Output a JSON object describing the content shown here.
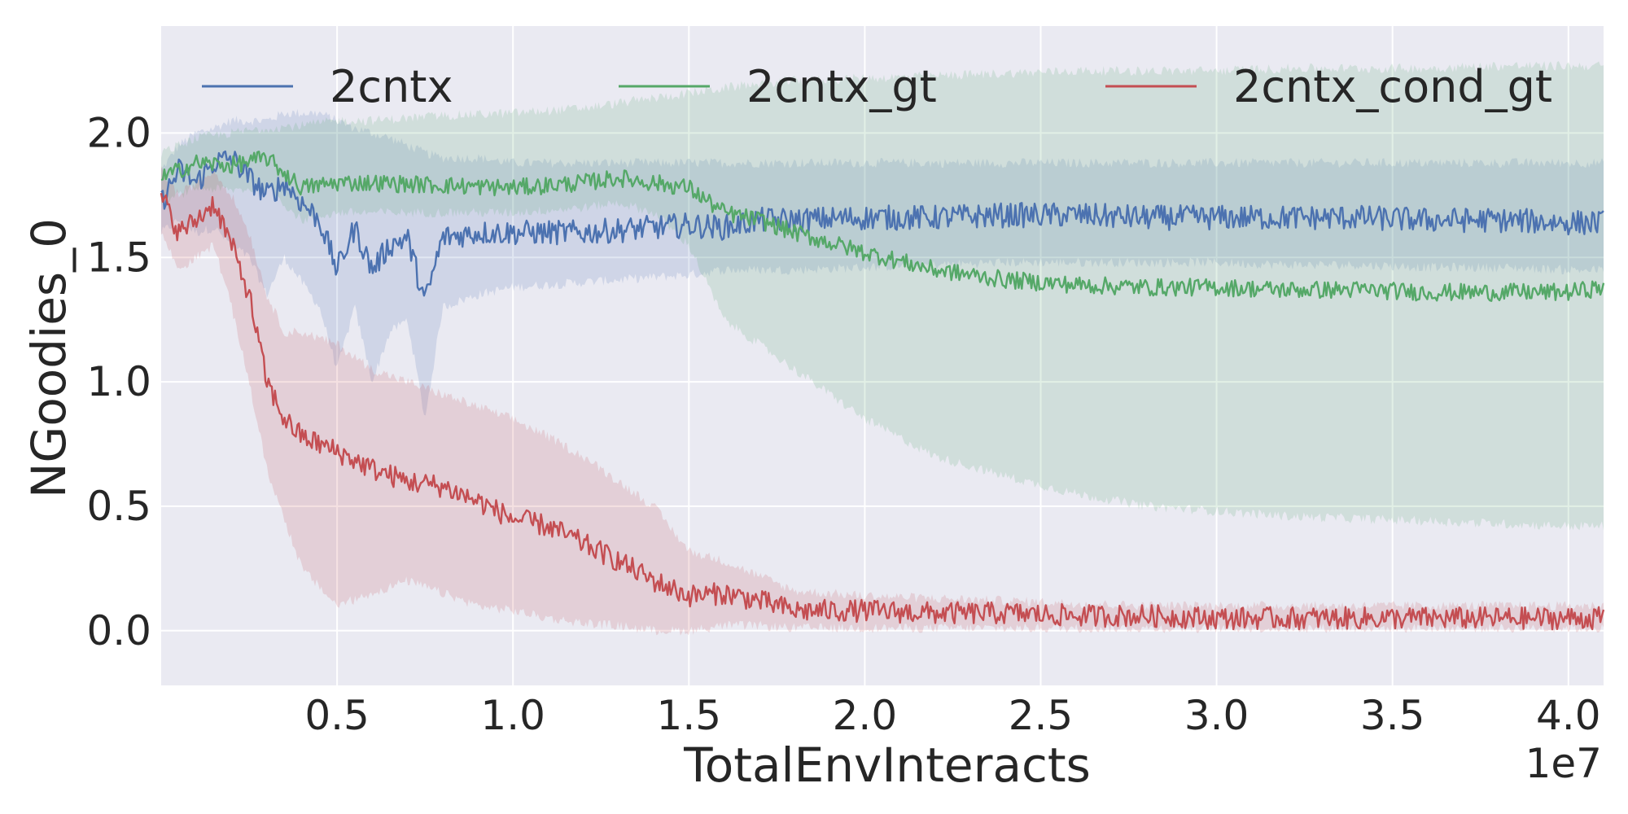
{
  "chart_data": {
    "type": "line",
    "title": "",
    "xlabel": "TotalEnvInteracts",
    "ylabel": "NGoodies_0",
    "x_offset_label": "1e7",
    "xlim": [
      0,
      41000000
    ],
    "ylim": [
      -0.22,
      2.43
    ],
    "xticks": [
      5000000,
      10000000,
      15000000,
      20000000,
      25000000,
      30000000,
      35000000,
      40000000
    ],
    "xtick_labels": [
      "0.5",
      "1.0",
      "1.5",
      "2.0",
      "2.5",
      "3.0",
      "3.5",
      "4.0"
    ],
    "yticks": [
      0.0,
      0.5,
      1.0,
      1.5,
      2.0
    ],
    "ytick_labels": [
      "0.0",
      "0.5",
      "1.0",
      "1.5",
      "2.0"
    ],
    "grid": true,
    "legend_position": "top",
    "series": [
      {
        "name": "2cntx",
        "color": "#4c72b0",
        "x": [
          0,
          500000,
          1000000,
          1500000,
          2000000,
          2500000,
          3000000,
          3500000,
          4000000,
          4500000,
          5000000,
          5500000,
          6000000,
          6500000,
          7000000,
          7500000,
          8000000,
          9000000,
          10000000,
          12000000,
          14000000,
          15000000,
          16000000,
          17000000,
          18000000,
          20000000,
          22000000,
          24000000,
          26000000,
          28000000,
          30000000,
          32000000,
          34000000,
          36000000,
          38000000,
          40000000,
          41000000
        ],
        "y": [
          1.72,
          1.85,
          1.8,
          1.88,
          1.9,
          1.82,
          1.75,
          1.8,
          1.72,
          1.65,
          1.45,
          1.62,
          1.45,
          1.55,
          1.58,
          1.32,
          1.58,
          1.6,
          1.6,
          1.6,
          1.62,
          1.63,
          1.62,
          1.65,
          1.65,
          1.66,
          1.66,
          1.67,
          1.67,
          1.66,
          1.66,
          1.66,
          1.66,
          1.65,
          1.65,
          1.64,
          1.64
        ],
        "lower": [
          1.6,
          1.65,
          1.6,
          1.62,
          1.55,
          1.5,
          1.35,
          1.5,
          1.4,
          1.3,
          1.05,
          1.3,
          1.0,
          1.2,
          1.25,
          0.85,
          1.3,
          1.35,
          1.38,
          1.4,
          1.42,
          1.43,
          1.45,
          1.45,
          1.45,
          1.46,
          1.47,
          1.48,
          1.48,
          1.48,
          1.48,
          1.47,
          1.47,
          1.46,
          1.46,
          1.45,
          1.45
        ],
        "upper": [
          1.85,
          1.95,
          2.0,
          2.02,
          2.05,
          2.05,
          2.05,
          2.08,
          2.08,
          2.08,
          2.05,
          2.02,
          2.0,
          1.98,
          1.95,
          1.92,
          1.9,
          1.9,
          1.88,
          1.88,
          1.88,
          1.88,
          1.88,
          1.88,
          1.88,
          1.88,
          1.88,
          1.88,
          1.88,
          1.88,
          1.88,
          1.88,
          1.88,
          1.88,
          1.88,
          1.88,
          1.88
        ]
      },
      {
        "name": "2cntx_gt",
        "color": "#55a868",
        "x": [
          0,
          500000,
          1000000,
          2000000,
          3000000,
          4000000,
          5000000,
          6000000,
          8000000,
          10000000,
          12000000,
          13000000,
          14000000,
          15000000,
          16000000,
          17000000,
          18000000,
          20000000,
          22000000,
          24000000,
          26000000,
          28000000,
          30000000,
          32000000,
          34000000,
          36000000,
          38000000,
          40000000,
          41000000
        ],
        "y": [
          1.82,
          1.85,
          1.88,
          1.87,
          1.9,
          1.78,
          1.8,
          1.8,
          1.79,
          1.78,
          1.8,
          1.82,
          1.8,
          1.78,
          1.68,
          1.65,
          1.6,
          1.52,
          1.45,
          1.41,
          1.39,
          1.38,
          1.38,
          1.37,
          1.37,
          1.36,
          1.36,
          1.36,
          1.38
        ],
        "lower": [
          1.72,
          1.75,
          1.78,
          1.77,
          1.78,
          1.65,
          1.68,
          1.68,
          1.68,
          1.68,
          1.7,
          1.72,
          1.68,
          1.55,
          1.25,
          1.15,
          1.05,
          0.85,
          0.7,
          0.62,
          0.55,
          0.5,
          0.48,
          0.46,
          0.45,
          0.44,
          0.43,
          0.42,
          0.42
        ],
        "upper": [
          1.92,
          1.95,
          1.98,
          2.0,
          2.02,
          2.03,
          2.05,
          2.05,
          2.07,
          2.08,
          2.1,
          2.12,
          2.14,
          2.16,
          2.18,
          2.2,
          2.21,
          2.22,
          2.23,
          2.24,
          2.25,
          2.25,
          2.25,
          2.26,
          2.26,
          2.26,
          2.27,
          2.27,
          2.27
        ]
      },
      {
        "name": "2cntx_cond_gt",
        "color": "#c44e52",
        "x": [
          0,
          500000,
          1000000,
          1500000,
          2000000,
          2500000,
          3000000,
          3500000,
          4000000,
          5000000,
          6000000,
          7000000,
          8000000,
          9000000,
          10000000,
          11000000,
          12000000,
          13000000,
          14000000,
          15000000,
          16000000,
          17000000,
          18000000,
          20000000,
          22000000,
          24000000,
          26000000,
          28000000,
          30000000,
          32000000,
          34000000,
          36000000,
          38000000,
          40000000,
          41000000
        ],
        "y": [
          1.75,
          1.6,
          1.65,
          1.72,
          1.55,
          1.35,
          1.0,
          0.85,
          0.78,
          0.72,
          0.65,
          0.6,
          0.58,
          0.52,
          0.45,
          0.42,
          0.35,
          0.28,
          0.2,
          0.14,
          0.15,
          0.12,
          0.08,
          0.08,
          0.07,
          0.07,
          0.06,
          0.06,
          0.05,
          0.05,
          0.05,
          0.05,
          0.05,
          0.05,
          0.05
        ],
        "lower": [
          1.6,
          1.45,
          1.5,
          1.55,
          1.3,
          1.0,
          0.65,
          0.45,
          0.25,
          0.1,
          0.15,
          0.2,
          0.15,
          0.1,
          0.08,
          0.05,
          0.03,
          0.02,
          0.0,
          0.0,
          0.02,
          0.02,
          0.01,
          0.01,
          0.01,
          0.01,
          0.01,
          0.01,
          0.01,
          0.01,
          0.01,
          0.01,
          0.01,
          0.01,
          0.01
        ],
        "upper": [
          1.85,
          1.75,
          1.8,
          1.85,
          1.75,
          1.6,
          1.35,
          1.2,
          1.2,
          1.15,
          1.05,
          1.0,
          0.95,
          0.9,
          0.85,
          0.78,
          0.7,
          0.6,
          0.5,
          0.32,
          0.28,
          0.22,
          0.16,
          0.14,
          0.13,
          0.12,
          0.11,
          0.1,
          0.1,
          0.1,
          0.1,
          0.1,
          0.1,
          0.1,
          0.1
        ]
      }
    ]
  }
}
